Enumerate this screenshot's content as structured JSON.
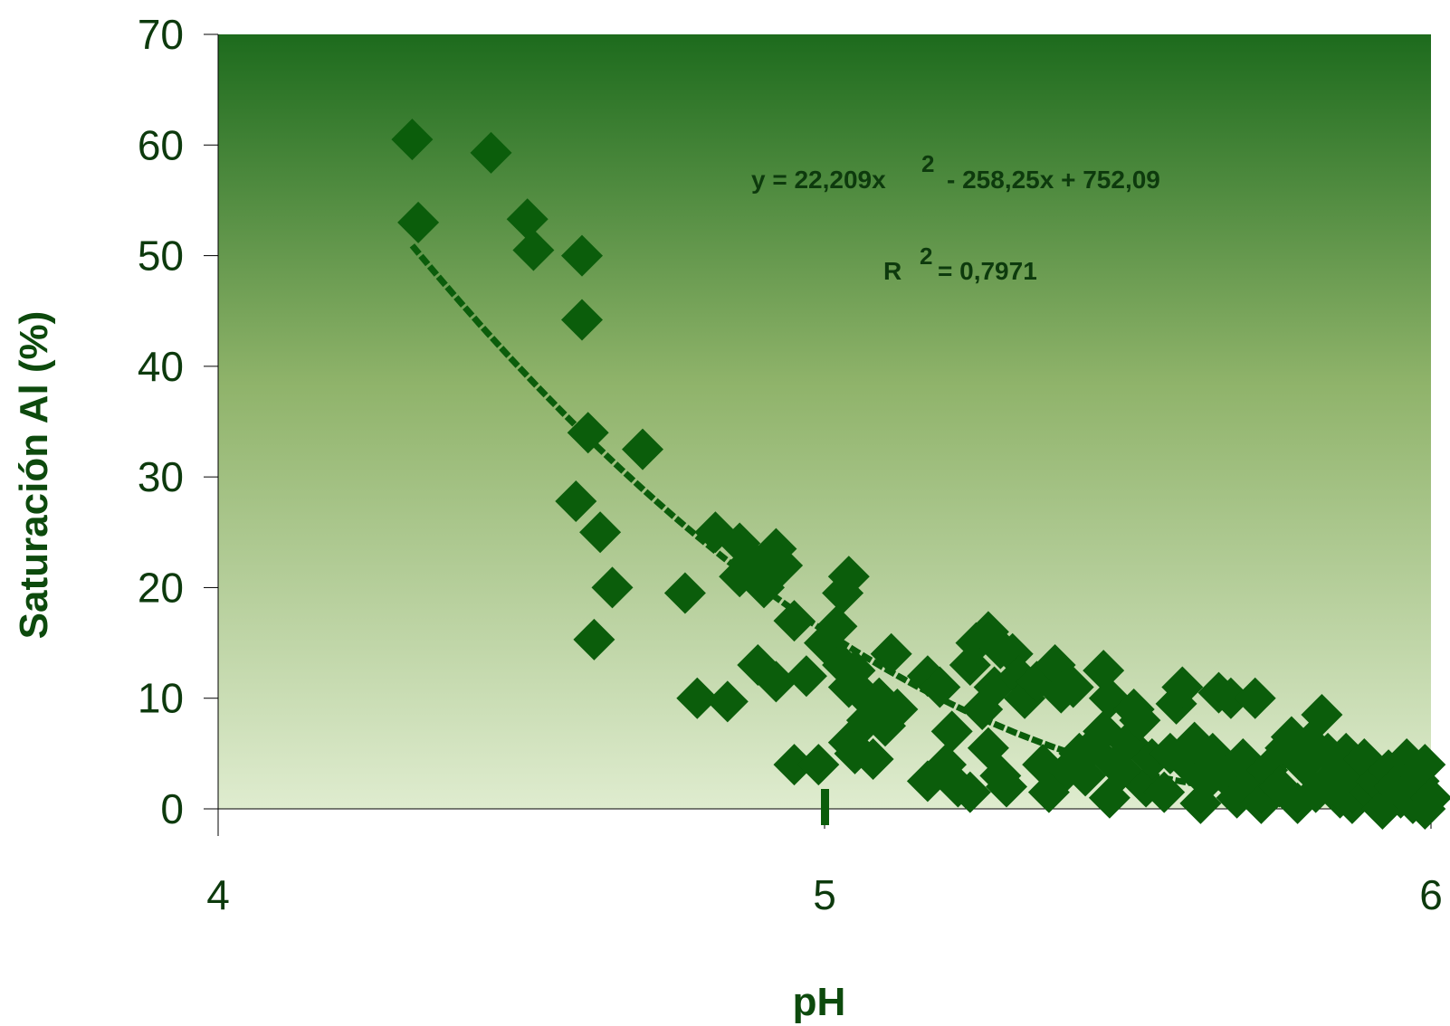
{
  "chart_data": {
    "type": "scatter",
    "title": "",
    "xlabel": "pH",
    "ylabel": "Saturación Al (%)",
    "xlim": [
      4,
      6
    ],
    "ylim": [
      0,
      70
    ],
    "x_ticks": [
      "4",
      "5",
      "6"
    ],
    "y_ticks": [
      "0",
      "10",
      "20",
      "30",
      "40",
      "50",
      "60",
      "70"
    ],
    "grid": false,
    "colors": {
      "marker": "#0b5d0b",
      "trendline": "#0b5d0b",
      "plot_bg_top": "#1d6b1d",
      "plot_bg_bottom": "#dfeccf",
      "text": "#0d3a0d"
    },
    "trendline": {
      "type": "polynomial",
      "order": 2,
      "coefficients": [
        22.209,
        -258.25,
        752.09
      ],
      "x_range": [
        4.32,
        5.98
      ],
      "equation_parts": [
        "y = 22,209x",
        "2",
        " - 258,25x + 752,09"
      ],
      "r2_parts": [
        "R",
        "2",
        " = 0,7971"
      ]
    },
    "points": [
      [
        4.32,
        60.5
      ],
      [
        4.33,
        53.0
      ],
      [
        4.45,
        59.3
      ],
      [
        4.51,
        53.3
      ],
      [
        4.52,
        50.5
      ],
      [
        4.6,
        50.0
      ],
      [
        4.6,
        44.2
      ],
      [
        4.61,
        34.0
      ],
      [
        4.59,
        27.8
      ],
      [
        4.63,
        25.0
      ],
      [
        4.65,
        20.0
      ],
      [
        4.62,
        15.3
      ],
      [
        4.7,
        32.5
      ],
      [
        4.77,
        19.5
      ],
      [
        4.79,
        10.0
      ],
      [
        4.84,
        9.7
      ],
      [
        4.82,
        25.0
      ],
      [
        4.86,
        24.0
      ],
      [
        4.86,
        21.0
      ],
      [
        4.88,
        22.5
      ],
      [
        4.9,
        20.0
      ],
      [
        4.92,
        23.5
      ],
      [
        4.93,
        22.0
      ],
      [
        4.89,
        13.0
      ],
      [
        4.92,
        11.5
      ],
      [
        4.95,
        17.0
      ],
      [
        4.97,
        12.0
      ],
      [
        4.95,
        4.0
      ],
      [
        4.99,
        4.0
      ],
      [
        5.0,
        15.0
      ],
      [
        5.02,
        16.5
      ],
      [
        5.03,
        19.5
      ],
      [
        5.04,
        21.0
      ],
      [
        5.03,
        13.0
      ],
      [
        5.04,
        11.0
      ],
      [
        5.05,
        12.5
      ],
      [
        5.06,
        10.5
      ],
      [
        5.04,
        6.0
      ],
      [
        5.05,
        5.0
      ],
      [
        5.08,
        4.5
      ],
      [
        5.07,
        8.0
      ],
      [
        5.09,
        10.0
      ],
      [
        5.11,
        14.0
      ],
      [
        5.12,
        9.0
      ],
      [
        5.1,
        7.5
      ],
      [
        5.17,
        12.0
      ],
      [
        5.19,
        11.0
      ],
      [
        5.17,
        2.5
      ],
      [
        5.2,
        4.0
      ],
      [
        5.21,
        7.0
      ],
      [
        5.22,
        2.0
      ],
      [
        5.24,
        13.0
      ],
      [
        5.24,
        1.5
      ],
      [
        5.25,
        15.0
      ],
      [
        5.27,
        16.0
      ],
      [
        5.28,
        11.0
      ],
      [
        5.29,
        14.5
      ],
      [
        5.31,
        14.0
      ],
      [
        5.26,
        9.0
      ],
      [
        5.27,
        5.5
      ],
      [
        5.29,
        3.0
      ],
      [
        5.3,
        2.0
      ],
      [
        5.32,
        12.0
      ],
      [
        5.33,
        10.0
      ],
      [
        5.35,
        11.5
      ],
      [
        5.36,
        4.0
      ],
      [
        5.38,
        13.0
      ],
      [
        5.39,
        10.5
      ],
      [
        5.4,
        3.5
      ],
      [
        5.37,
        1.5
      ],
      [
        5.41,
        11.0
      ],
      [
        5.42,
        5.0
      ],
      [
        5.43,
        3.0
      ],
      [
        5.44,
        5.5
      ],
      [
        5.46,
        12.5
      ],
      [
        5.47,
        10.0
      ],
      [
        5.46,
        7.0
      ],
      [
        5.48,
        4.0
      ],
      [
        5.47,
        1.0
      ],
      [
        5.49,
        3.5
      ],
      [
        5.5,
        6.0
      ],
      [
        5.51,
        9.0
      ],
      [
        5.52,
        8.0
      ],
      [
        5.53,
        2.0
      ],
      [
        5.54,
        4.5
      ],
      [
        5.56,
        1.5
      ],
      [
        5.57,
        5.0
      ],
      [
        5.58,
        9.5
      ],
      [
        5.59,
        11.0
      ],
      [
        5.6,
        4.0
      ],
      [
        5.61,
        6.0
      ],
      [
        5.62,
        0.5
      ],
      [
        5.63,
        2.5
      ],
      [
        5.64,
        5.0
      ],
      [
        5.65,
        10.5
      ],
      [
        5.66,
        3.0
      ],
      [
        5.67,
        10.0
      ],
      [
        5.68,
        1.0
      ],
      [
        5.69,
        4.5
      ],
      [
        5.7,
        2.0
      ],
      [
        5.71,
        10.0
      ],
      [
        5.72,
        0.5
      ],
      [
        5.73,
        3.5
      ],
      [
        5.75,
        2.0
      ],
      [
        5.76,
        5.5
      ],
      [
        5.77,
        6.5
      ],
      [
        5.78,
        0.5
      ],
      [
        5.79,
        4.0
      ],
      [
        5.8,
        6.0
      ],
      [
        5.81,
        1.5
      ],
      [
        5.82,
        8.5
      ],
      [
        5.83,
        5.0
      ],
      [
        5.84,
        3.0
      ],
      [
        5.85,
        1.0
      ],
      [
        5.86,
        5.0
      ],
      [
        5.87,
        0.5
      ],
      [
        5.88,
        3.0
      ],
      [
        5.89,
        4.5
      ],
      [
        5.9,
        1.5
      ],
      [
        5.91,
        2.5
      ],
      [
        5.92,
        0.0
      ],
      [
        5.93,
        3.5
      ],
      [
        5.94,
        2.0
      ],
      [
        5.95,
        1.0
      ],
      [
        5.96,
        4.5
      ],
      [
        5.97,
        0.5
      ],
      [
        5.98,
        2.5
      ],
      [
        5.99,
        4.0
      ],
      [
        6.0,
        1.0
      ],
      [
        5.99,
        0.0
      ]
    ],
    "marker_at_x_axis": [
      5.0,
      -1.0
    ]
  }
}
